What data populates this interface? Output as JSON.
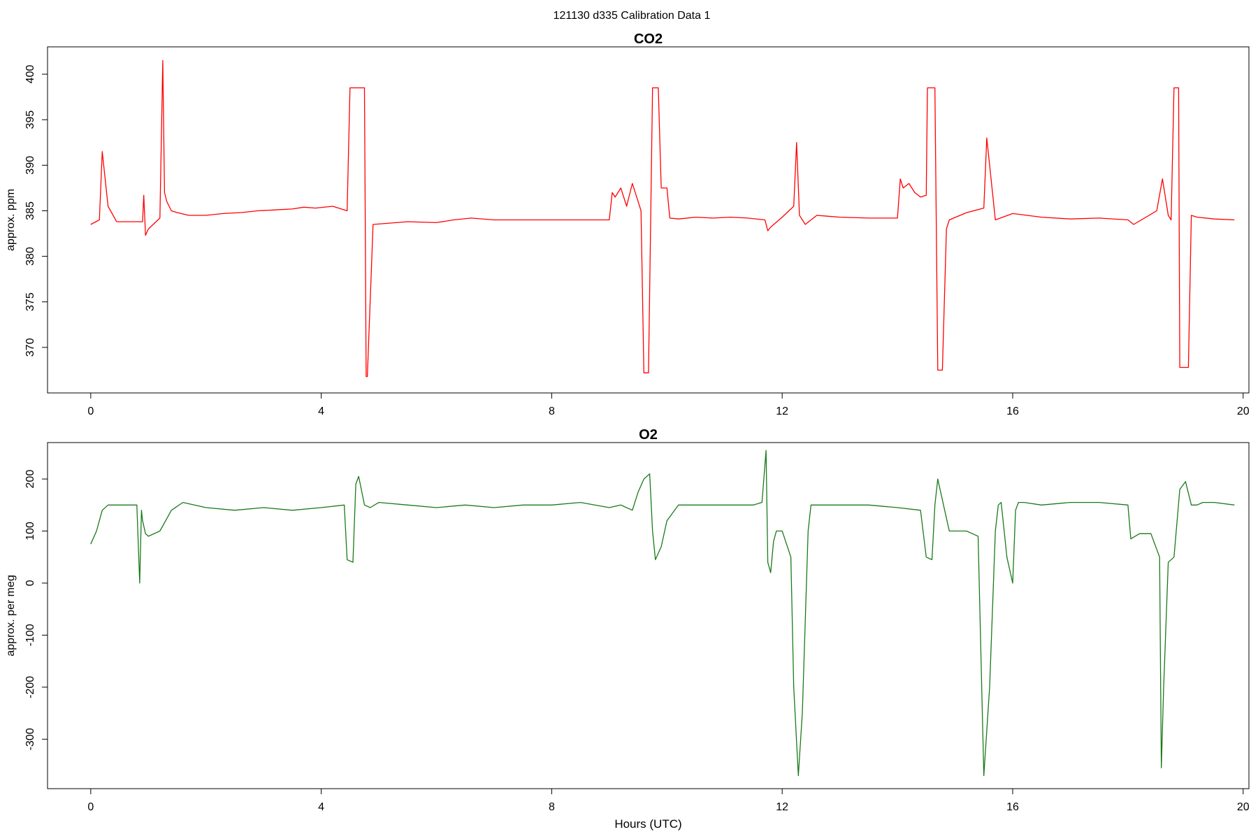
{
  "page": {
    "title": "121130   d335   Calibration Data 1"
  },
  "chart_data": [
    {
      "type": "line",
      "title": "CO2",
      "xlabel": "",
      "ylabel": "approx. ppm",
      "xlim": [
        -0.75,
        20.1
      ],
      "ylim": [
        365,
        403
      ],
      "xticks": [
        0,
        4,
        8,
        12,
        16,
        20
      ],
      "yticks": [
        370,
        375,
        380,
        385,
        390,
        395,
        400
      ],
      "grid": false,
      "series": [
        {
          "color": "#ff0000",
          "x": [
            0.0,
            0.15,
            0.2,
            0.3,
            0.45,
            0.9,
            0.92,
            0.95,
            1.0,
            1.2,
            1.25,
            1.28,
            1.32,
            1.4,
            1.5,
            1.7,
            2.0,
            2.3,
            2.6,
            2.9,
            3.2,
            3.5,
            3.7,
            3.9,
            4.2,
            4.45,
            4.5,
            4.52,
            4.75,
            4.78,
            4.8,
            4.9,
            5.5,
            6.0,
            6.3,
            6.6,
            7.0,
            7.5,
            8.0,
            8.5,
            9.0,
            9.05,
            9.1,
            9.2,
            9.3,
            9.4,
            9.5,
            9.55,
            9.6,
            9.65,
            9.68,
            9.75,
            9.8,
            9.85,
            9.9,
            10.0,
            10.05,
            10.2,
            10.5,
            10.8,
            11.1,
            11.4,
            11.7,
            11.75,
            11.8,
            12.0,
            12.2,
            12.25,
            12.3,
            12.4,
            12.6,
            12.8,
            13.0,
            13.5,
            14.0,
            14.05,
            14.1,
            14.2,
            14.3,
            14.4,
            14.5,
            14.52,
            14.6,
            14.65,
            14.7,
            14.75,
            14.78,
            14.85,
            14.9,
            15.2,
            15.5,
            15.55,
            15.7,
            16.0,
            16.5,
            17.0,
            17.5,
            18.0,
            18.1,
            18.5,
            18.6,
            18.7,
            18.75,
            18.8,
            18.85,
            18.88,
            18.9,
            18.95,
            19.0,
            19.05,
            19.1,
            19.2,
            19.5,
            19.85
          ],
          "y": [
            383.5,
            384.0,
            391.5,
            385.5,
            383.8,
            383.8,
            386.7,
            382.3,
            383.0,
            384.2,
            401.5,
            387.0,
            386.0,
            385.0,
            384.8,
            384.5,
            384.5,
            384.7,
            384.8,
            385.0,
            385.1,
            385.2,
            385.4,
            385.3,
            385.5,
            385.0,
            398.5,
            398.5,
            398.5,
            366.8,
            366.8,
            383.5,
            383.8,
            383.7,
            384.0,
            384.2,
            384.0,
            384.0,
            384.0,
            384.0,
            384.0,
            387.0,
            386.5,
            387.5,
            385.5,
            388.0,
            386.0,
            385.0,
            367.2,
            367.2,
            367.2,
            398.5,
            398.5,
            398.5,
            387.5,
            387.5,
            384.2,
            384.1,
            384.3,
            384.2,
            384.3,
            384.2,
            384.0,
            382.8,
            383.2,
            384.3,
            385.5,
            392.5,
            384.5,
            383.5,
            384.5,
            384.4,
            384.3,
            384.2,
            384.2,
            388.5,
            387.5,
            388.0,
            387.0,
            386.5,
            386.7,
            398.5,
            398.5,
            398.5,
            367.5,
            367.5,
            367.5,
            383.0,
            384.0,
            384.8,
            385.3,
            393.0,
            384.0,
            384.7,
            384.3,
            384.1,
            384.2,
            384.0,
            383.5,
            385.0,
            388.5,
            384.5,
            384.0,
            398.5,
            398.5,
            398.5,
            367.8,
            367.8,
            367.8,
            367.8,
            384.5,
            384.3,
            384.1,
            384.0
          ]
        }
      ]
    },
    {
      "type": "line",
      "title": "O2",
      "xlabel": "Hours (UTC)",
      "ylabel": "approx. per meg",
      "xlim": [
        -0.75,
        20.1
      ],
      "ylim": [
        -395,
        270
      ],
      "xticks": [
        0,
        4,
        8,
        12,
        16,
        20
      ],
      "yticks": [
        -300,
        -200,
        -100,
        0,
        100,
        200
      ],
      "grid": false,
      "series": [
        {
          "color": "#1a7a1a",
          "x": [
            0.0,
            0.1,
            0.2,
            0.3,
            0.5,
            0.8,
            0.85,
            0.88,
            0.9,
            0.95,
            1.0,
            1.2,
            1.4,
            1.6,
            2.0,
            2.5,
            3.0,
            3.5,
            4.0,
            4.4,
            4.45,
            4.55,
            4.6,
            4.65,
            4.75,
            4.85,
            5.0,
            5.5,
            6.0,
            6.5,
            7.0,
            7.5,
            8.0,
            8.5,
            9.0,
            9.2,
            9.4,
            9.5,
            9.6,
            9.7,
            9.75,
            9.8,
            9.9,
            10.0,
            10.2,
            10.5,
            11.0,
            11.5,
            11.65,
            11.72,
            11.75,
            11.8,
            11.85,
            11.9,
            12.0,
            12.15,
            12.2,
            12.28,
            12.35,
            12.45,
            12.5,
            12.7,
            13.0,
            13.5,
            14.0,
            14.4,
            14.5,
            14.6,
            14.65,
            14.7,
            14.8,
            14.9,
            15.0,
            15.2,
            15.4,
            15.5,
            15.6,
            15.7,
            15.75,
            15.8,
            15.9,
            16.0,
            16.05,
            16.1,
            16.2,
            16.5,
            17.0,
            17.5,
            18.0,
            18.05,
            18.2,
            18.4,
            18.55,
            18.58,
            18.62,
            18.7,
            18.8,
            18.9,
            19.0,
            19.1,
            19.2,
            19.3,
            19.5,
            19.85
          ],
          "y": [
            75,
            100,
            140,
            150,
            150,
            150,
            0,
            140,
            120,
            95,
            90,
            100,
            140,
            155,
            145,
            140,
            145,
            140,
            145,
            150,
            45,
            40,
            190,
            205,
            150,
            145,
            155,
            150,
            145,
            150,
            145,
            150,
            150,
            155,
            145,
            150,
            140,
            175,
            200,
            210,
            100,
            45,
            70,
            120,
            150,
            150,
            150,
            150,
            155,
            255,
            40,
            20,
            80,
            100,
            100,
            50,
            -200,
            -370,
            -250,
            100,
            150,
            150,
            150,
            150,
            145,
            140,
            50,
            45,
            150,
            200,
            150,
            100,
            100,
            100,
            90,
            -370,
            -200,
            100,
            150,
            155,
            50,
            0,
            140,
            155,
            155,
            150,
            155,
            155,
            150,
            85,
            95,
            95,
            50,
            -355,
            -200,
            40,
            50,
            180,
            195,
            150,
            150,
            155,
            155,
            150
          ]
        }
      ]
    }
  ]
}
